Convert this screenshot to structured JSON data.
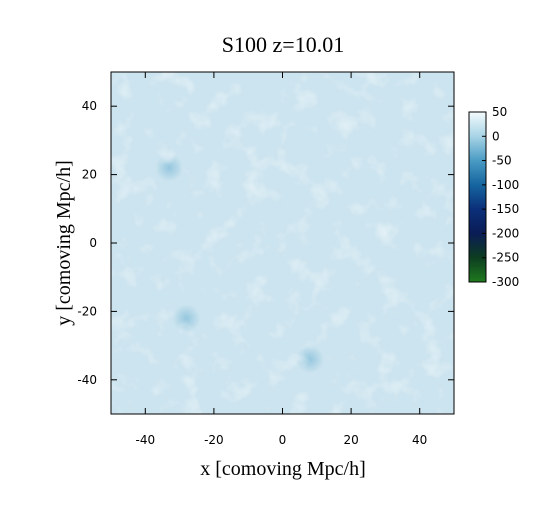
{
  "chart_data": {
    "type": "heatmap",
    "title": "S100 z=10.01",
    "xlabel": "x [comoving Mpc/h]",
    "ylabel": "y [comoving Mpc/h]",
    "xlim": [
      -50,
      50
    ],
    "ylim": [
      -50,
      50
    ],
    "xticks": [
      -40,
      -20,
      0,
      20,
      40
    ],
    "yticks": [
      -40,
      -20,
      0,
      20,
      40
    ],
    "colorbar": {
      "range": [
        -300,
        50
      ],
      "ticks": [
        50,
        0,
        -50,
        -100,
        -150,
        -200,
        -250,
        -300
      ],
      "colors": [
        {
          "value": 50,
          "color": "#f4fbfd"
        },
        {
          "value": 0,
          "color": "#a8d4e6"
        },
        {
          "value": -50,
          "color": "#4a9bc4"
        },
        {
          "value": -100,
          "color": "#1565a0"
        },
        {
          "value": -150,
          "color": "#0b2f7a"
        },
        {
          "value": -200,
          "color": "#0a1c55"
        },
        {
          "value": -250,
          "color": "#0d3d20"
        },
        {
          "value": -300,
          "color": "#1f7a1f"
        }
      ]
    },
    "field_background_color": "#cce4ef",
    "field_features": [
      {
        "x": -33,
        "y": 22,
        "value": -20
      },
      {
        "x": -28,
        "y": -22,
        "value": -15
      },
      {
        "x": 8,
        "y": -34,
        "value": -10
      }
    ]
  }
}
